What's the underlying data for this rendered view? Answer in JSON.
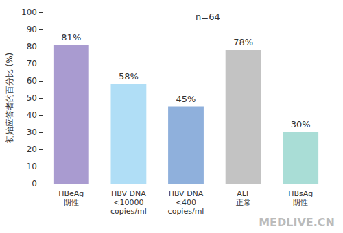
{
  "chart_data": {
    "type": "bar",
    "ylabel": "初始应答者的百分比 (%)",
    "annotations": [
      "n=64",
      "MEDLIVE.CN"
    ],
    "categories": [
      "HBeAg\n阴性",
      "HBV DNA\n<10000\ncopies/ml",
      "HBV DNA\n<400\ncopies/ml",
      "ALT\n正常",
      "HBsAg\n阴性"
    ],
    "values": [
      81,
      58,
      45,
      78,
      30
    ],
    "value_labels": [
      "81%",
      "58%",
      "45%",
      "78%",
      "30%"
    ],
    "colors": [
      "#a99bd0",
      "#b0def6",
      "#8fb0dc",
      "#c3c3c3",
      "#a9ddd6"
    ],
    "ylim": [
      0,
      100
    ],
    "yticks": [
      0,
      10,
      20,
      30,
      40,
      50,
      60,
      70,
      80,
      90,
      100
    ],
    "grid": false,
    "data_labels": true
  }
}
